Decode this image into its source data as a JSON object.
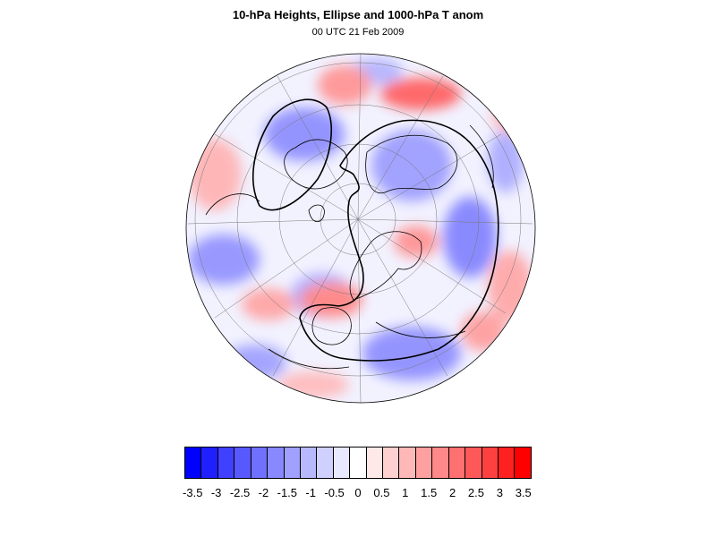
{
  "title": "10-hPa Heights, Ellipse and 1000-hPa T anom",
  "subtitle": "00 UTC 21 Feb 2009",
  "map": {
    "projection": "north polar orthographic",
    "field": "1000-hPa temperature anomaly (shaded)",
    "overlay": "10-hPa height ellipse (black contour)",
    "grid": true,
    "coastlines": true
  },
  "colorbar": {
    "colors": [
      "#0000ff",
      "#2020ff",
      "#4040ff",
      "#5858ff",
      "#7070ff",
      "#8888ff",
      "#a0a0ff",
      "#b8b8ff",
      "#d0d0ff",
      "#e8e8ff",
      "#ffffff",
      "#ffe8e8",
      "#ffd0d0",
      "#ffb8b8",
      "#ffa0a0",
      "#ff8888",
      "#ff7070",
      "#ff5858",
      "#ff4040",
      "#ff2020",
      "#ff0000"
    ],
    "labels": [
      "-3.5",
      "-3",
      "-2.5",
      "-2",
      "-1.5",
      "-1",
      "-0.5",
      "0",
      "0.5",
      "1",
      "1.5",
      "2",
      "2.5",
      "3",
      "3.5"
    ]
  }
}
